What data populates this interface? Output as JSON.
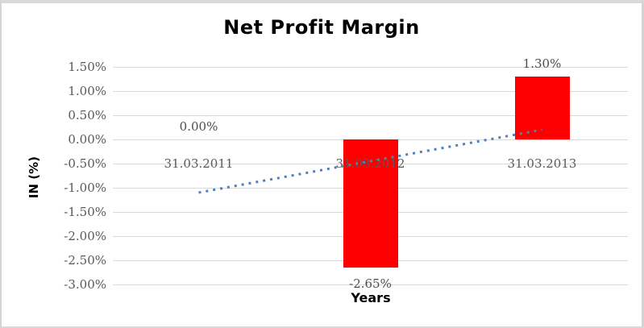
{
  "chart_data": {
    "type": "bar",
    "title": "Net Profit Margin",
    "xlabel": "Years",
    "ylabel": "IN (%)",
    "categories": [
      "31.03.2011",
      "31.03.2012",
      "31.03.2013"
    ],
    "values": [
      0.0,
      -2.65,
      1.3
    ],
    "data_labels": [
      "0.00%",
      "-2.65%",
      "1.30%"
    ],
    "y_ticks": [
      "1.50%",
      "1.00%",
      "0.50%",
      "0.00%",
      "-0.50%",
      "-1.00%",
      "-1.50%",
      "-2.00%",
      "-2.50%",
      "-3.00%"
    ],
    "ylim": [
      -3.0,
      1.5
    ],
    "grid": true,
    "legend": "none",
    "bar_color": "#FF0000",
    "text_color": "#595959",
    "gridline_color": "#D9D9D9",
    "trendline": {
      "style": "dotted",
      "color": "#4E81BD",
      "start_value": -1.1,
      "end_value": 0.2
    }
  }
}
